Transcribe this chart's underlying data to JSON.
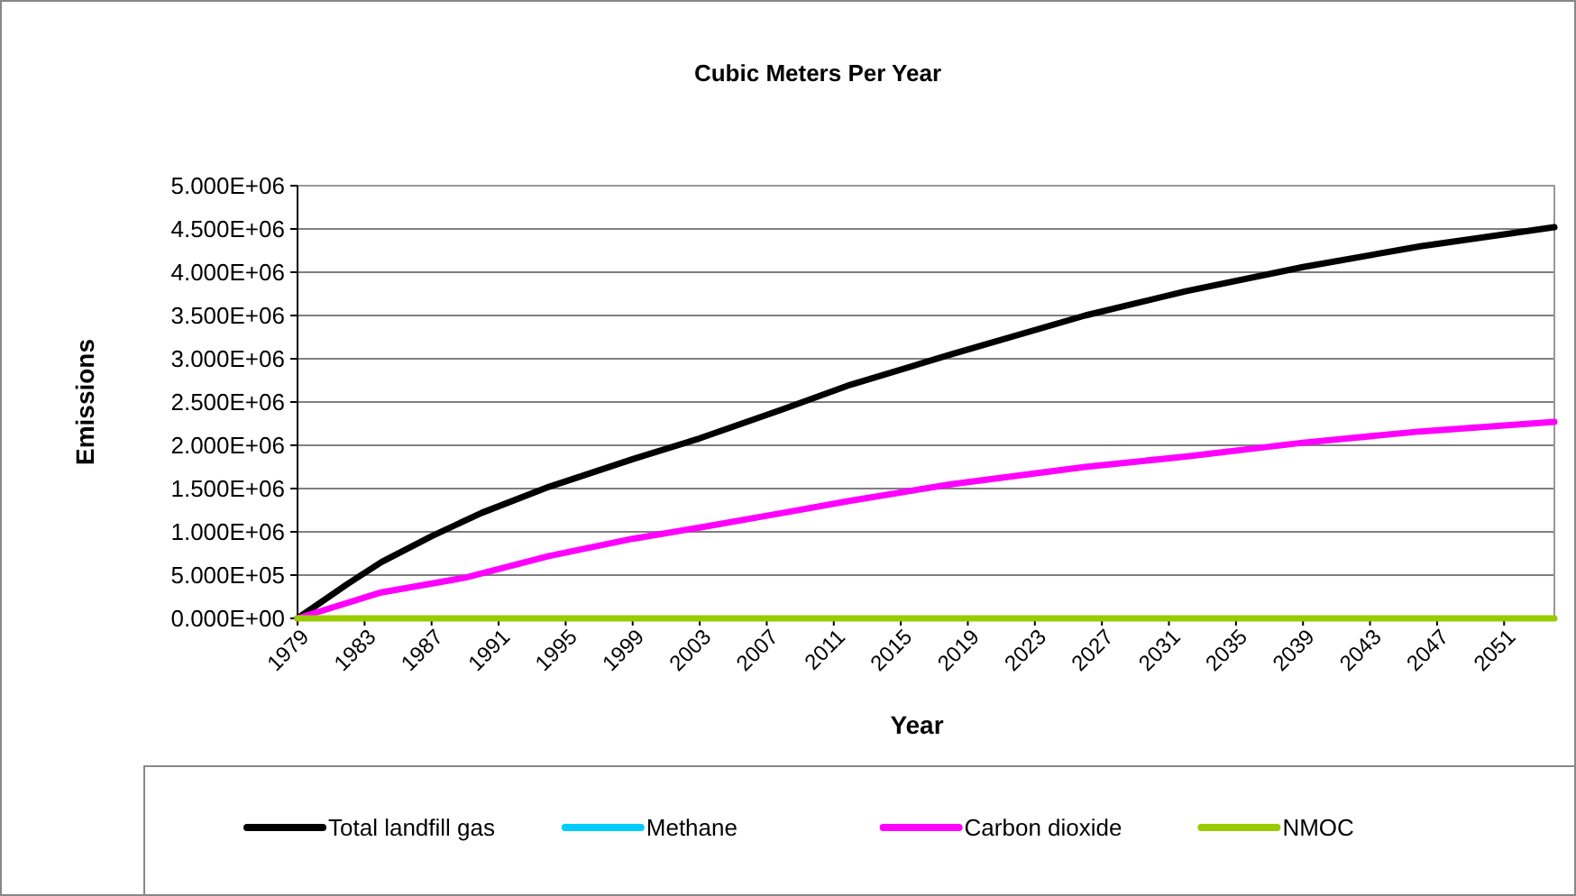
{
  "chart_data": {
    "type": "line",
    "title": "Cubic Meters Per Year",
    "xlabel": "Year",
    "ylabel": "Emissions",
    "xlim": [
      1979,
      2054
    ],
    "xticks": [
      1979,
      1983,
      1987,
      1991,
      1995,
      1999,
      2003,
      2007,
      2011,
      2015,
      2019,
      2023,
      2027,
      2031,
      2035,
      2039,
      2043,
      2047,
      2051
    ],
    "ylim": [
      0,
      5000000
    ],
    "yticks": [
      {
        "value": 0,
        "label": "0.000E+00"
      },
      {
        "value": 500000,
        "label": "5.000E+05"
      },
      {
        "value": 1000000,
        "label": "1.000E+06"
      },
      {
        "value": 1500000,
        "label": "1.500E+06"
      },
      {
        "value": 2000000,
        "label": "2.000E+06"
      },
      {
        "value": 2500000,
        "label": "2.500E+06"
      },
      {
        "value": 3000000,
        "label": "3.000E+06"
      },
      {
        "value": 3500000,
        "label": "3.500E+06"
      },
      {
        "value": 4000000,
        "label": "4.000E+06"
      },
      {
        "value": 4500000,
        "label": "4.500E+06"
      },
      {
        "value": 5000000,
        "label": "5.000E+06"
      }
    ],
    "grid": "y",
    "legend": "bottom",
    "marker": "none",
    "line_style": "solid",
    "series": [
      {
        "name": "Total landfill gas",
        "color": "#000000",
        "x": [
          1979,
          1982,
          1984,
          1987,
          1990,
          1994,
          1999,
          2003,
          2008,
          2012,
          2018,
          2026,
          2032,
          2039,
          2046,
          2054
        ],
        "values": [
          0,
          400000,
          650000,
          950000,
          1220000,
          1520000,
          1840000,
          2080000,
          2420000,
          2700000,
          3050000,
          3500000,
          3780000,
          4060000,
          4300000,
          4520000
        ]
      },
      {
        "name": "Methane",
        "color": "#00ccff"
      },
      {
        "name": "Carbon dioxide",
        "color": "#ff00ff",
        "x": [
          1979,
          1984,
          1989,
          1994,
          1999,
          2003,
          2008,
          2012,
          2018,
          2026,
          2032,
          2039,
          2046,
          2054
        ],
        "values": [
          0,
          300000,
          470000,
          720000,
          920000,
          1050000,
          1220000,
          1360000,
          1550000,
          1750000,
          1870000,
          2030000,
          2160000,
          2270000
        ]
      },
      {
        "name": "NMOC",
        "color": "#99cc00",
        "x": [
          1979,
          2054
        ],
        "values": [
          0,
          0
        ]
      }
    ]
  }
}
